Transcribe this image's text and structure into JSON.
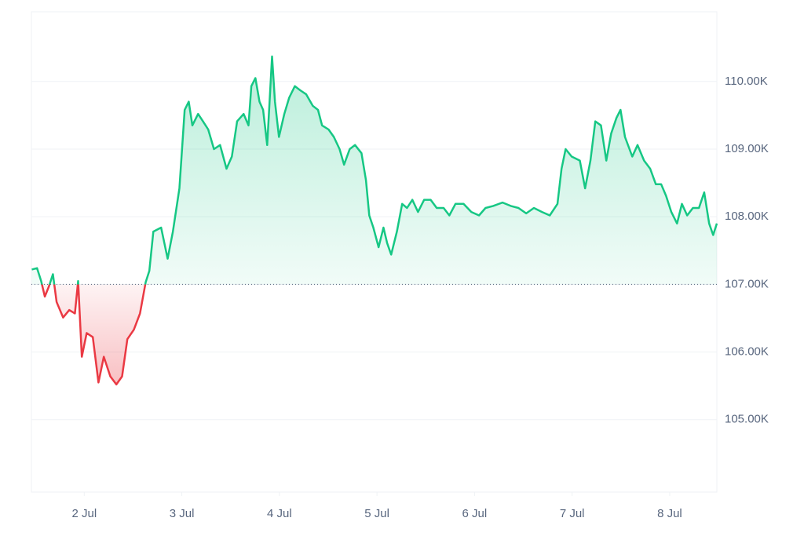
{
  "chart_data": {
    "type": "line",
    "x": [
      -12.9,
      -11.6,
      -10.6,
      -9.7,
      -8.7,
      -7.7,
      -6.8,
      -5.2,
      -3.7,
      -2.3,
      -1.5,
      -0.6,
      0.6,
      2.1,
      3.5,
      4.8,
      6.4,
      7.9,
      9.3,
      10.6,
      12.2,
      13.7,
      15.1,
      16.0,
      17.0,
      18.9,
      20.5,
      21.8,
      23.4,
      24.7,
      25.7,
      26.6,
      28.0,
      29.2,
      30.5,
      31.9,
      33.4,
      35.0,
      36.3,
      37.6,
      39.2,
      40.4,
      41.1,
      42.1,
      43.1,
      44.0,
      45.0,
      46.2,
      46.9,
      47.9,
      49.2,
      50.4,
      51.8,
      53.1,
      54.6,
      56.2,
      57.5,
      58.5,
      60.1,
      61.4,
      62.8,
      63.9,
      65.3,
      66.6,
      68.2,
      69.3,
      70.1,
      71.1,
      72.4,
      73.6,
      74.5,
      75.5,
      76.9,
      78.2,
      79.4,
      80.7,
      82.1,
      83.6,
      85.2,
      86.7,
      88.4,
      89.8,
      91.3,
      93.3,
      95.2,
      97.1,
      98.7,
      100.6,
      102.9,
      104.9,
      106.8,
      108.7,
      110.6,
      112.6,
      114.5,
      116.4,
      117.4,
      118.4,
      119.9,
      121.9,
      123.2,
      124.5,
      125.7,
      127.1,
      128.4,
      129.6,
      130.9,
      131.9,
      133.0,
      134.8,
      136.1,
      137.7,
      139.2,
      140.6,
      141.9,
      143.1,
      144.4,
      145.8,
      147.0,
      148.3,
      149.7,
      151.2,
      152.5,
      153.7,
      154.7,
      155.6
    ],
    "values": [
      107220,
      107240,
      107050,
      106820,
      106970,
      107150,
      106740,
      106510,
      106620,
      106570,
      107050,
      105930,
      106280,
      106220,
      105550,
      105930,
      105640,
      105520,
      105640,
      106190,
      106330,
      106570,
      107030,
      107200,
      107780,
      107840,
      107380,
      107780,
      108420,
      109580,
      109700,
      109350,
      109520,
      109410,
      109290,
      109000,
      109060,
      108710,
      108890,
      109410,
      109520,
      109350,
      109930,
      110050,
      109700,
      109580,
      109060,
      110370,
      109700,
      109180,
      109520,
      109760,
      109930,
      109870,
      109810,
      109640,
      109580,
      109350,
      109290,
      109180,
      109000,
      108770,
      109000,
      109060,
      108940,
      108540,
      108020,
      107840,
      107550,
      107840,
      107610,
      107440,
      107780,
      108190,
      108130,
      108250,
      108070,
      108250,
      108250,
      108130,
      108130,
      108020,
      108190,
      108190,
      108070,
      108020,
      108130,
      108160,
      108210,
      108160,
      108130,
      108050,
      108130,
      108070,
      108020,
      108190,
      108710,
      109000,
      108890,
      108830,
      108420,
      108830,
      109410,
      109350,
      108830,
      109230,
      109460,
      109580,
      109180,
      108890,
      109060,
      108830,
      108710,
      108480,
      108480,
      108310,
      108070,
      107900,
      108190,
      108020,
      108130,
      108130,
      108360,
      107900,
      107730,
      107900
    ],
    "baseline": 107000,
    "color_up": "#16c784",
    "color_down": "#ea3943",
    "xlim": [
      -13,
      155.6
    ],
    "xticks": [
      {
        "value": 0,
        "label": "2 Jul"
      },
      {
        "value": 24,
        "label": "3 Jul"
      },
      {
        "value": 48,
        "label": "4 Jul"
      },
      {
        "value": 72,
        "label": "5 Jul"
      },
      {
        "value": 96,
        "label": "6 Jul"
      },
      {
        "value": 120,
        "label": "7 Jul"
      },
      {
        "value": 144,
        "label": "8 Jul"
      }
    ],
    "ylim": [
      103930,
      111030
    ],
    "yticks": [
      {
        "value": 105000,
        "label": "105.00K"
      },
      {
        "value": 106000,
        "label": "106.00K"
      },
      {
        "value": 107000,
        "label": "107.00K"
      },
      {
        "value": 108000,
        "label": "108.00K"
      },
      {
        "value": 109000,
        "label": "109.00K"
      },
      {
        "value": 110000,
        "label": "110.00K"
      }
    ],
    "grid": true
  }
}
